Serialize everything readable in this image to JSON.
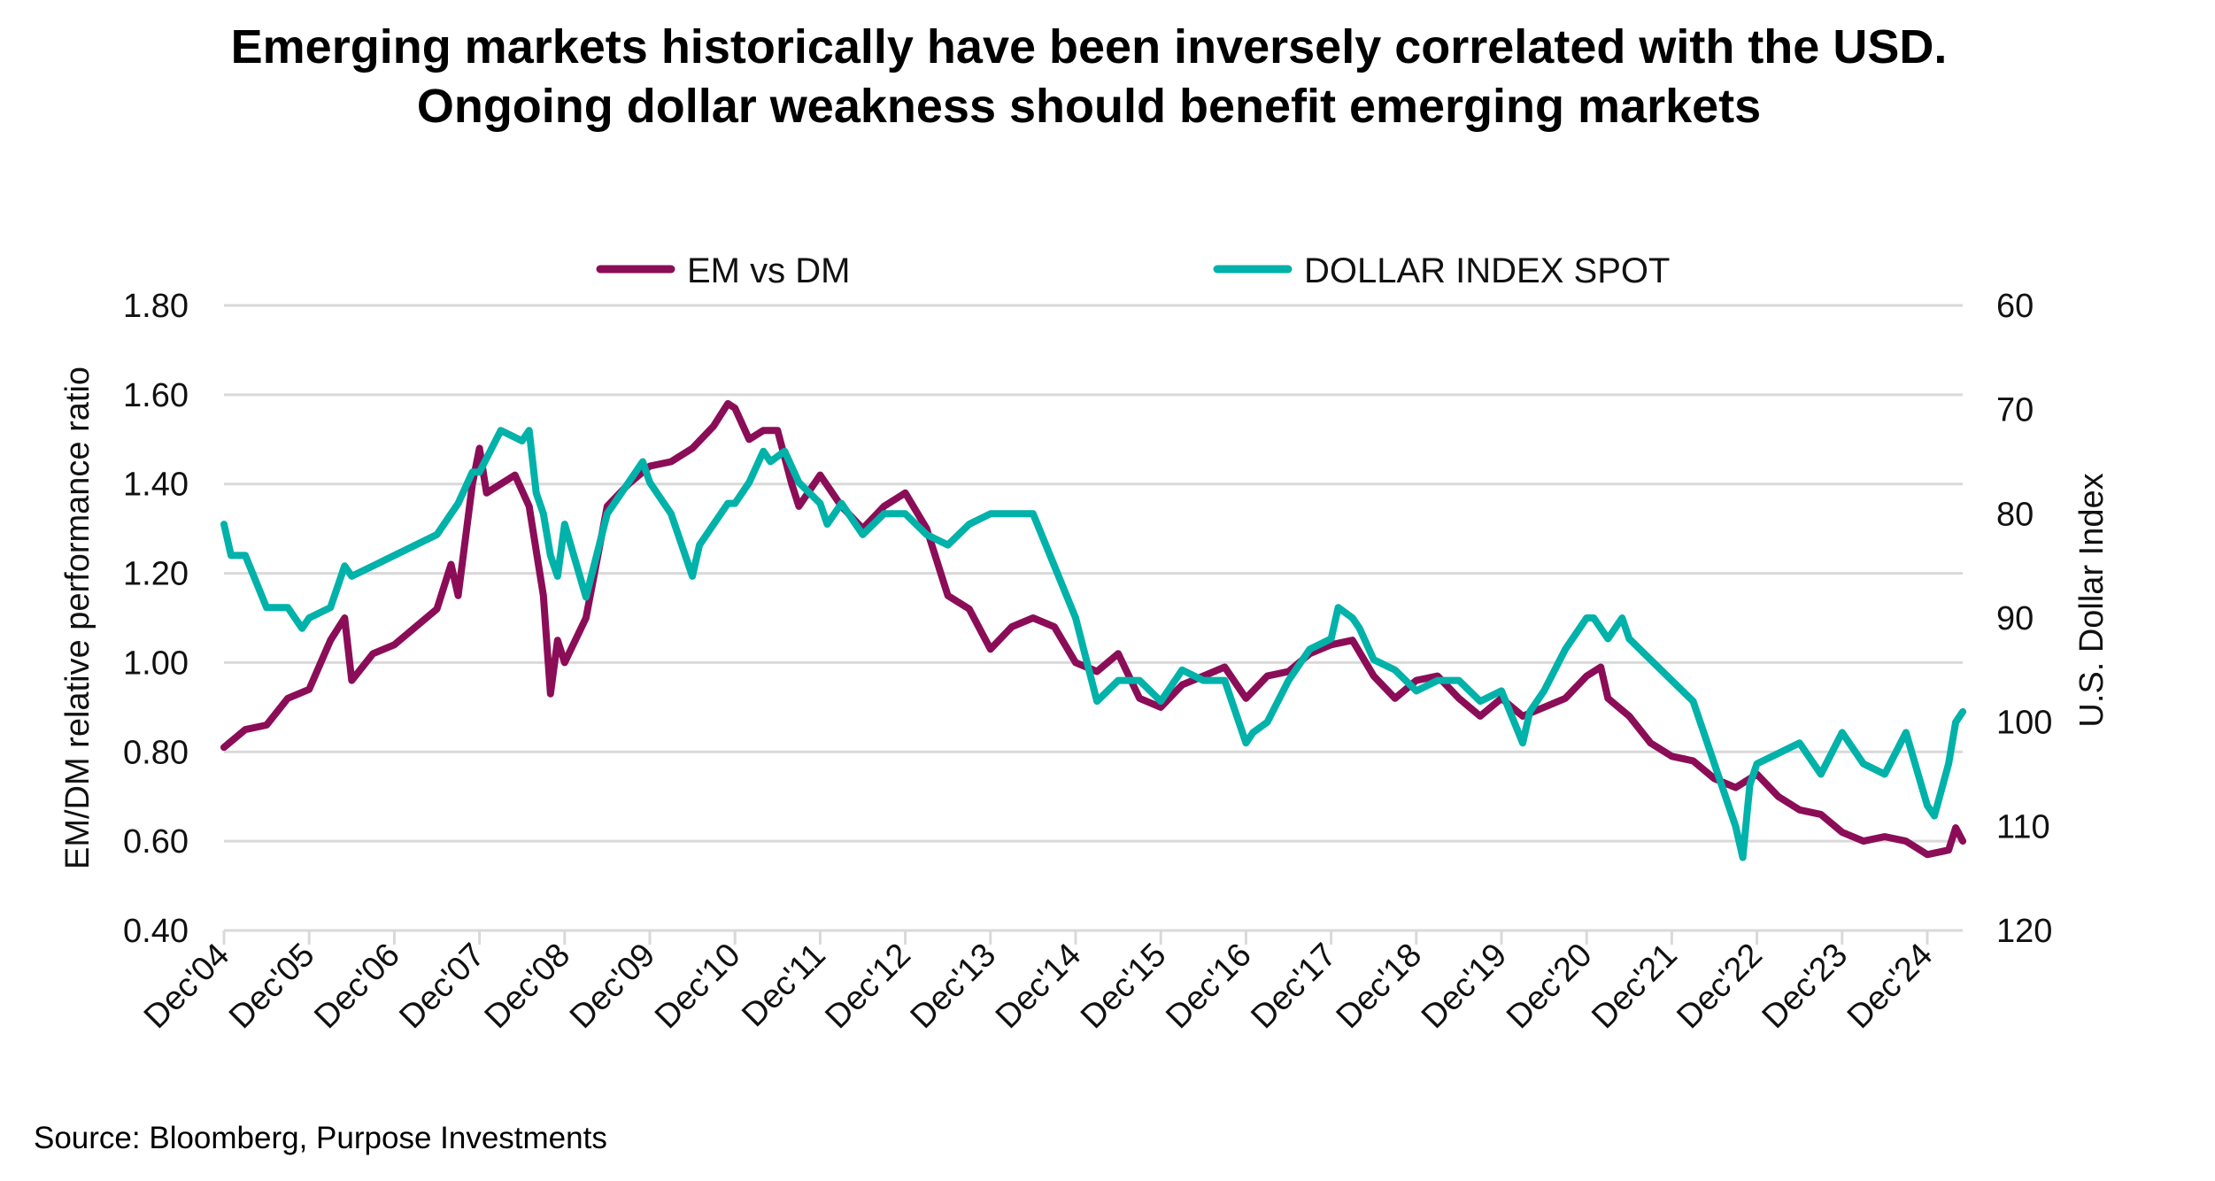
{
  "chart_data": {
    "type": "line",
    "title": "Emerging markets historically have been inversely correlated with the USD. Ongoing dollar weakness should benefit emerging markets",
    "source": "Source: Bloomberg, Purpose Investments",
    "ylabel": "EM/DM relative performance ratio",
    "y2label": "U.S. Dollar Index",
    "ylim": [
      0.4,
      1.8
    ],
    "y2lim": [
      60,
      120
    ],
    "y2_inverted": true,
    "yticks": [
      "0.40",
      "0.60",
      "0.80",
      "1.00",
      "1.20",
      "1.40",
      "1.60",
      "1.80"
    ],
    "y2ticks": [
      "60",
      "70",
      "80",
      "90",
      "100",
      "110",
      "120"
    ],
    "xticks": [
      "Dec'04",
      "Dec'05",
      "Dec'06",
      "Dec'07",
      "Dec'08",
      "Dec'09",
      "Dec'10",
      "Dec'11",
      "Dec'12",
      "Dec'13",
      "Dec'14",
      "Dec'15",
      "Dec'16",
      "Dec'17",
      "Dec'18",
      "Dec'19",
      "Dec'20",
      "Dec'21",
      "Dec'22",
      "Dec'23",
      "Dec'24"
    ],
    "grid": true,
    "legend_position": "top",
    "series": [
      {
        "name": "EM vs DM",
        "axis": "left",
        "color": "#8B0D57",
        "points": [
          [
            "2004-12",
            0.81
          ],
          [
            "2005-03",
            0.85
          ],
          [
            "2005-06",
            0.86
          ],
          [
            "2005-09",
            0.92
          ],
          [
            "2005-12",
            0.94
          ],
          [
            "2006-03",
            1.05
          ],
          [
            "2006-05",
            1.1
          ],
          [
            "2006-06",
            0.96
          ],
          [
            "2006-09",
            1.02
          ],
          [
            "2006-12",
            1.04
          ],
          [
            "2007-03",
            1.08
          ],
          [
            "2007-06",
            1.12
          ],
          [
            "2007-08",
            1.22
          ],
          [
            "2007-09",
            1.15
          ],
          [
            "2007-11",
            1.4
          ],
          [
            "2007-12",
            1.48
          ],
          [
            "2008-01",
            1.38
          ],
          [
            "2008-03",
            1.4
          ],
          [
            "2008-05",
            1.42
          ],
          [
            "2008-07",
            1.35
          ],
          [
            "2008-09",
            1.15
          ],
          [
            "2008-10",
            0.93
          ],
          [
            "2008-11",
            1.05
          ],
          [
            "2008-12",
            1.0
          ],
          [
            "2009-03",
            1.1
          ],
          [
            "2009-06",
            1.35
          ],
          [
            "2009-09",
            1.4
          ],
          [
            "2009-12",
            1.44
          ],
          [
            "2010-03",
            1.45
          ],
          [
            "2010-06",
            1.48
          ],
          [
            "2010-09",
            1.53
          ],
          [
            "2010-11",
            1.58
          ],
          [
            "2010-12",
            1.57
          ],
          [
            "2011-02",
            1.5
          ],
          [
            "2011-04",
            1.52
          ],
          [
            "2011-06",
            1.52
          ],
          [
            "2011-08",
            1.4
          ],
          [
            "2011-09",
            1.35
          ],
          [
            "2011-12",
            1.42
          ],
          [
            "2012-03",
            1.35
          ],
          [
            "2012-06",
            1.3
          ],
          [
            "2012-09",
            1.35
          ],
          [
            "2012-12",
            1.38
          ],
          [
            "2013-03",
            1.3
          ],
          [
            "2013-06",
            1.15
          ],
          [
            "2013-09",
            1.12
          ],
          [
            "2013-12",
            1.03
          ],
          [
            "2014-03",
            1.08
          ],
          [
            "2014-06",
            1.1
          ],
          [
            "2014-09",
            1.08
          ],
          [
            "2014-12",
            1.0
          ],
          [
            "2015-03",
            0.98
          ],
          [
            "2015-06",
            1.02
          ],
          [
            "2015-09",
            0.92
          ],
          [
            "2015-12",
            0.9
          ],
          [
            "2016-03",
            0.95
          ],
          [
            "2016-06",
            0.97
          ],
          [
            "2016-09",
            0.99
          ],
          [
            "2016-12",
            0.92
          ],
          [
            "2017-03",
            0.97
          ],
          [
            "2017-06",
            0.98
          ],
          [
            "2017-09",
            1.02
          ],
          [
            "2017-12",
            1.04
          ],
          [
            "2018-03",
            1.05
          ],
          [
            "2018-06",
            0.97
          ],
          [
            "2018-09",
            0.92
          ],
          [
            "2018-12",
            0.96
          ],
          [
            "2019-03",
            0.97
          ],
          [
            "2019-06",
            0.92
          ],
          [
            "2019-09",
            0.88
          ],
          [
            "2019-12",
            0.92
          ],
          [
            "2020-03",
            0.88
          ],
          [
            "2020-06",
            0.9
          ],
          [
            "2020-09",
            0.92
          ],
          [
            "2020-12",
            0.97
          ],
          [
            "2021-02",
            0.99
          ],
          [
            "2021-03",
            0.92
          ],
          [
            "2021-06",
            0.88
          ],
          [
            "2021-09",
            0.82
          ],
          [
            "2021-12",
            0.79
          ],
          [
            "2022-03",
            0.78
          ],
          [
            "2022-06",
            0.74
          ],
          [
            "2022-09",
            0.72
          ],
          [
            "2022-12",
            0.75
          ],
          [
            "2023-03",
            0.7
          ],
          [
            "2023-06",
            0.67
          ],
          [
            "2023-09",
            0.66
          ],
          [
            "2023-12",
            0.62
          ],
          [
            "2024-03",
            0.6
          ],
          [
            "2024-06",
            0.61
          ],
          [
            "2024-09",
            0.6
          ],
          [
            "2024-12",
            0.57
          ],
          [
            "2025-03",
            0.58
          ],
          [
            "2025-04",
            0.63
          ],
          [
            "2025-05",
            0.6
          ]
        ]
      },
      {
        "name": "DOLLAR INDEX SPOT",
        "axis": "right",
        "color": "#00B2A9",
        "points": [
          [
            "2004-12",
            81
          ],
          [
            "2005-01",
            84
          ],
          [
            "2005-03",
            84
          ],
          [
            "2005-06",
            89
          ],
          [
            "2005-09",
            89
          ],
          [
            "2005-11",
            91
          ],
          [
            "2005-12",
            90
          ],
          [
            "2006-03",
            89
          ],
          [
            "2006-05",
            85
          ],
          [
            "2006-06",
            86
          ],
          [
            "2006-09",
            85
          ],
          [
            "2006-12",
            84
          ],
          [
            "2007-03",
            83
          ],
          [
            "2007-06",
            82
          ],
          [
            "2007-09",
            79
          ],
          [
            "2007-11",
            76
          ],
          [
            "2007-12",
            76
          ],
          [
            "2008-03",
            72
          ],
          [
            "2008-06",
            73
          ],
          [
            "2008-07",
            72
          ],
          [
            "2008-08",
            78
          ],
          [
            "2008-09",
            80
          ],
          [
            "2008-10",
            84
          ],
          [
            "2008-11",
            86
          ],
          [
            "2008-12",
            81
          ],
          [
            "2009-03",
            88
          ],
          [
            "2009-06",
            80
          ],
          [
            "2009-09",
            77
          ],
          [
            "2009-11",
            75
          ],
          [
            "2009-12",
            77
          ],
          [
            "2010-03",
            80
          ],
          [
            "2010-06",
            86
          ],
          [
            "2010-07",
            83
          ],
          [
            "2010-09",
            81
          ],
          [
            "2010-11",
            79
          ],
          [
            "2010-12",
            79
          ],
          [
            "2011-02",
            77
          ],
          [
            "2011-04",
            74
          ],
          [
            "2011-05",
            75
          ],
          [
            "2011-07",
            74
          ],
          [
            "2011-09",
            77
          ],
          [
            "2011-12",
            79
          ],
          [
            "2012-01",
            81
          ],
          [
            "2012-03",
            79
          ],
          [
            "2012-06",
            82
          ],
          [
            "2012-09",
            80
          ],
          [
            "2012-12",
            80
          ],
          [
            "2013-03",
            82
          ],
          [
            "2013-06",
            83
          ],
          [
            "2013-09",
            81
          ],
          [
            "2013-12",
            80
          ],
          [
            "2014-03",
            80
          ],
          [
            "2014-06",
            80
          ],
          [
            "2014-09",
            85
          ],
          [
            "2014-12",
            90
          ],
          [
            "2015-03",
            98
          ],
          [
            "2015-06",
            96
          ],
          [
            "2015-09",
            96
          ],
          [
            "2015-12",
            98
          ],
          [
            "2016-03",
            95
          ],
          [
            "2016-06",
            96
          ],
          [
            "2016-09",
            96
          ],
          [
            "2016-12",
            102
          ],
          [
            "2017-01",
            101
          ],
          [
            "2017-03",
            100
          ],
          [
            "2017-06",
            96
          ],
          [
            "2017-09",
            93
          ],
          [
            "2017-12",
            92
          ],
          [
            "2018-01",
            89
          ],
          [
            "2018-03",
            90
          ],
          [
            "2018-04",
            91
          ],
          [
            "2018-06",
            94
          ],
          [
            "2018-09",
            95
          ],
          [
            "2018-12",
            97
          ],
          [
            "2019-03",
            96
          ],
          [
            "2019-06",
            96
          ],
          [
            "2019-09",
            98
          ],
          [
            "2019-12",
            97
          ],
          [
            "2020-03",
            102
          ],
          [
            "2020-04",
            99
          ],
          [
            "2020-06",
            97
          ],
          [
            "2020-09",
            93
          ],
          [
            "2020-12",
            90
          ],
          [
            "2021-01",
            90
          ],
          [
            "2021-03",
            92
          ],
          [
            "2021-05",
            90
          ],
          [
            "2021-06",
            92
          ],
          [
            "2021-09",
            94
          ],
          [
            "2021-12",
            96
          ],
          [
            "2022-03",
            98
          ],
          [
            "2022-06",
            104
          ],
          [
            "2022-09",
            110
          ],
          [
            "2022-10",
            113
          ],
          [
            "2022-11",
            106
          ],
          [
            "2022-12",
            104
          ],
          [
            "2023-03",
            103
          ],
          [
            "2023-06",
            102
          ],
          [
            "2023-09",
            105
          ],
          [
            "2023-12",
            101
          ],
          [
            "2024-03",
            104
          ],
          [
            "2024-06",
            105
          ],
          [
            "2024-09",
            101
          ],
          [
            "2024-12",
            108
          ],
          [
            "2025-01",
            109
          ],
          [
            "2025-03",
            104
          ],
          [
            "2025-04",
            100
          ],
          [
            "2025-05",
            99
          ]
        ]
      }
    ]
  }
}
